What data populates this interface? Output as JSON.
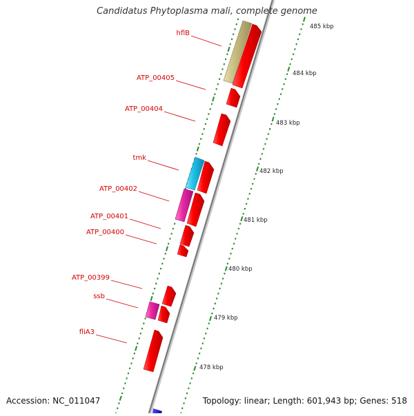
{
  "title": "Candidatus Phytoplasma mali, complete genome",
  "footer": {
    "accession": "Accession: NC_011047",
    "summary": "Topology: linear; Length: 601,943 bp; Genes: 518"
  },
  "colors": {
    "forward_gene": "#ff0000",
    "hflB_gene": "#c8bd80",
    "tmk_gene": "#22c3ea",
    "pink_gene": "#ea2aa5",
    "blue_gene": "#0000ee",
    "tick_green": "#2a8a2a",
    "label_red": "#d40000",
    "axis_line": "#888888"
  },
  "tick_labels": [
    "485 kbp",
    "484 kbp",
    "483 kbp",
    "482 kbp",
    "481 kbp",
    "480 kbp",
    "479 kbp",
    "478 kbp"
  ],
  "gene_labels": [
    "hflB",
    "ATP_00405",
    "ATP_00404",
    "tmk",
    "ATP_00402",
    "ATP_00401",
    "ATP_00400",
    "ATP_00399",
    "ssb",
    "fliA3"
  ]
}
